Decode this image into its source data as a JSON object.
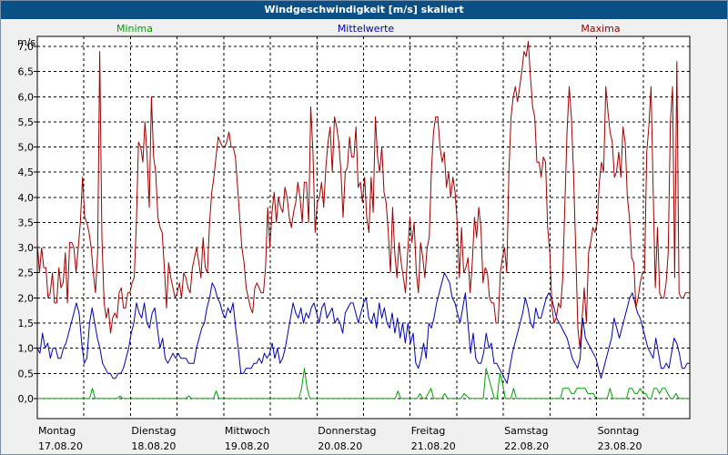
{
  "window": {
    "title": "Windgeschwindigkeit [m/s] skaliert"
  },
  "colors": {
    "background": "#f0f0f0",
    "title_bar": "#0a4f86",
    "minima": "#00a000",
    "mittelwerte": "#0000b0",
    "maxima": "#a00000",
    "grid": "#000000"
  },
  "chart_data": {
    "type": "line",
    "title": "Windgeschwindigkeit [m/s] skaliert",
    "ylabel": "m/s",
    "xlabel": "",
    "ylim": [
      -0.4,
      7.2
    ],
    "y_ticks": [
      0.0,
      0.5,
      1.0,
      1.5,
      2.0,
      2.5,
      3.0,
      3.5,
      4.0,
      4.5,
      5.0,
      5.5,
      6.0,
      6.5,
      7.0
    ],
    "y_tick_labels": [
      "0,0",
      "0,5",
      "1,0",
      "1,5",
      "2,0",
      "2,5",
      "3,0",
      "3,5",
      "4,0",
      "4,5",
      "5,0",
      "5,5",
      "6,0",
      "6,5",
      "7,0"
    ],
    "x_range_days": [
      0,
      7
    ],
    "x_ticks": [
      {
        "day": "Montag",
        "date": "17.08.20"
      },
      {
        "day": "Dienstag",
        "date": "18.08.20"
      },
      {
        "day": "Mittwoch",
        "date": "19.08.20"
      },
      {
        "day": "Donnerstag",
        "date": "20.08.20"
      },
      {
        "day": "Freitag",
        "date": "21.08.20"
      },
      {
        "day": "Samstag",
        "date": "22.08.20"
      },
      {
        "day": "Sonntag",
        "date": "23.08.20"
      }
    ],
    "grid": true,
    "series": [
      {
        "name": "Minima",
        "color": "#00a000",
        "legend_position": "left",
        "values": [
          0,
          0,
          0,
          0,
          0,
          0,
          0,
          0,
          0,
          0,
          0,
          0,
          0,
          0,
          0,
          0,
          0,
          0,
          0,
          0,
          0.2,
          0,
          0,
          0,
          0,
          0,
          0,
          0,
          0,
          0,
          0.05,
          0,
          0,
          0,
          0,
          0,
          0,
          0,
          0,
          0,
          0,
          0,
          0,
          0,
          0,
          0,
          0,
          0,
          0,
          0,
          0,
          0,
          0,
          0,
          0,
          0.05,
          0,
          0,
          0,
          0,
          0,
          0,
          0,
          0,
          0,
          0.15,
          0,
          0,
          0,
          0,
          0,
          0,
          0,
          0,
          0,
          0,
          0,
          0,
          0,
          0,
          0,
          0,
          0,
          0,
          0,
          0,
          0,
          0,
          0,
          0,
          0,
          0,
          0,
          0,
          0,
          0,
          0.2,
          0.6,
          0.2,
          0,
          0,
          0,
          0,
          0,
          0,
          0,
          0,
          0,
          0,
          0,
          0,
          0,
          0,
          0,
          0,
          0,
          0,
          0,
          0,
          0,
          0,
          0,
          0,
          0,
          0,
          0,
          0,
          0,
          0,
          0,
          0,
          0.15,
          0,
          0,
          0,
          0,
          0,
          0,
          0,
          0.1,
          0,
          0,
          0.1,
          0.2,
          0,
          0,
          0,
          0,
          0.1,
          0,
          0,
          0,
          0,
          0,
          0,
          0.1,
          0.05,
          0,
          0,
          0,
          0,
          0,
          0,
          0.6,
          0.4,
          0.2,
          0,
          0,
          0.5,
          0.3,
          0,
          0,
          0,
          0.2,
          0,
          0,
          0,
          0,
          0,
          0,
          0,
          0,
          0,
          0,
          0,
          0,
          0,
          0,
          0,
          0,
          0,
          0.2,
          0.2,
          0.2,
          0.1,
          0.1,
          0.2,
          0.2,
          0.2,
          0.2,
          0.1,
          0.1,
          0.1,
          0,
          0,
          0,
          0,
          0,
          0.2,
          0,
          0,
          0,
          0,
          0,
          0,
          0.2,
          0.2,
          0.1,
          0.1,
          0.2,
          0.1,
          0.1,
          0,
          0,
          0.2,
          0.2,
          0.1,
          0.2,
          0.2,
          0.1,
          0,
          0,
          0.1,
          0,
          0,
          0,
          0,
          0
        ]
      },
      {
        "name": "Mittelwerte",
        "color": "#0000b0",
        "legend_position": "center",
        "values": [
          1.0,
          0.9,
          1.3,
          1.0,
          1.1,
          0.8,
          1.0,
          1.0,
          0.8,
          0.8,
          1.0,
          1.1,
          1.3,
          1.5,
          1.7,
          1.9,
          1.7,
          1.1,
          0.7,
          0.8,
          1.5,
          1.8,
          1.5,
          1.2,
          1.0,
          0.7,
          0.6,
          0.5,
          0.5,
          0.4,
          0.4,
          0.5,
          0.5,
          0.6,
          0.8,
          1.0,
          1.3,
          1.5,
          1.9,
          1.7,
          1.6,
          1.9,
          1.5,
          1.4,
          1.7,
          1.8,
          1.4,
          1.0,
          1.2,
          0.8,
          0.7,
          0.8,
          0.9,
          0.8,
          0.9,
          0.8,
          0.8,
          0.8,
          0.7,
          0.7,
          0.7,
          1.0,
          1.2,
          1.4,
          1.5,
          1.8,
          2.0,
          2.3,
          2.2,
          2.0,
          1.9,
          1.7,
          1.6,
          1.8,
          1.7,
          1.9,
          1.4,
          1.0,
          0.5,
          0.5,
          0.6,
          0.6,
          0.6,
          0.7,
          0.7,
          0.8,
          0.7,
          0.9,
          0.8,
          0.9,
          1.1,
          0.8,
          1.0,
          0.7,
          0.8,
          1.0,
          1.3,
          1.6,
          1.9,
          1.7,
          1.6,
          1.8,
          1.5,
          1.7,
          1.6,
          1.8,
          1.9,
          1.7,
          1.5,
          1.8,
          1.9,
          1.6,
          1.7,
          1.8,
          1.5,
          1.6,
          1.5,
          1.3,
          1.7,
          1.8,
          1.9,
          1.9,
          1.7,
          1.5,
          1.7,
          1.9,
          2.0,
          1.6,
          1.5,
          1.7,
          1.4,
          1.9,
          1.6,
          1.8,
          1.5,
          1.4,
          1.7,
          1.3,
          1.6,
          1.2,
          1.5,
          1.1,
          1.5,
          1.1,
          1.3,
          0.7,
          0.6,
          0.8,
          1.1,
          0.8,
          1.5,
          1.4,
          1.6,
          1.9,
          2.1,
          2.3,
          2.5,
          2.4,
          2.3,
          2.0,
          1.9,
          1.7,
          1.5,
          1.8,
          2.1,
          1.5,
          0.9,
          1.3,
          0.8,
          0.7,
          0.7,
          0.9,
          1.3,
          1.0,
          1.1,
          0.7,
          0.7,
          0.6,
          0.5,
          0.4,
          0.3,
          0.6,
          0.9,
          1.1,
          1.3,
          1.5,
          1.7,
          2.0,
          1.8,
          1.5,
          1.4,
          1.8,
          1.6,
          1.6,
          1.8,
          2.0,
          2.1,
          2.0,
          1.8,
          1.6,
          1.5,
          1.4,
          1.3,
          1.2,
          1.0,
          0.8,
          0.7,
          0.6,
          0.8,
          1.6,
          1.2,
          1.1,
          1.0,
          0.9,
          0.8,
          0.6,
          0.4,
          0.6,
          0.8,
          1.0,
          1.2,
          1.6,
          1.4,
          1.2,
          1.4,
          1.6,
          1.8,
          2.0,
          2.1,
          1.9,
          1.7,
          1.6,
          1.4,
          1.2,
          1.0,
          0.9,
          0.8,
          1.2,
          0.9,
          0.6,
          0.6,
          0.7,
          0.6,
          0.9,
          1.2,
          1.1,
          0.9,
          0.6,
          0.6,
          0.7,
          0.7
        ]
      },
      {
        "name": "Maxima",
        "color": "#a00000",
        "legend_position": "right",
        "values": [
          3.1,
          2.5,
          3.0,
          2.6,
          2.6,
          2.0,
          2.1,
          2.5,
          1.9,
          1.9,
          2.6,
          2.2,
          2.3,
          2.9,
          1.9,
          3.1,
          3.1,
          3.0,
          2.5,
          3.0,
          3.5,
          4.4,
          3.6,
          3.5,
          3.3,
          3.0,
          2.5,
          2.1,
          2.9,
          6.9,
          3.2,
          1.9,
          1.6,
          1.8,
          1.3,
          1.6,
          1.7,
          1.6,
          2.1,
          2.2,
          1.8,
          1.8,
          2.1,
          2.1,
          2.3,
          2.4,
          3.5,
          5.1,
          5.0,
          4.7,
          5.5,
          4.8,
          3.8,
          6.0,
          4.8,
          4.5,
          3.6,
          3.4,
          3.3,
          2.6,
          1.8,
          2.7,
          2.4,
          2.2,
          2.0,
          2.1,
          2.3,
          2.0,
          2.5,
          2.4,
          2.2,
          2.1,
          2.6,
          2.8,
          3.0,
          2.7,
          2.4,
          3.2,
          2.6,
          2.5,
          3.5,
          4.1,
          4.4,
          4.8,
          5.2,
          5.1,
          5.0,
          5.0,
          5.1,
          5.3,
          5.0,
          5.0,
          4.8,
          4.2,
          3.6,
          3.0,
          2.7,
          2.2,
          2.0,
          1.8,
          1.7,
          2.2,
          2.3,
          2.2,
          2.1,
          2.1,
          2.6,
          3.8,
          3.0,
          3.7,
          4.1,
          3.5,
          4.0,
          3.8,
          3.7,
          4.2,
          4.0,
          3.6,
          3.4,
          3.7,
          3.9,
          4.3,
          4.0,
          3.5,
          4.3,
          4.3,
          3.5,
          5.8,
          4.9,
          3.3,
          3.9,
          4.0,
          4.3,
          3.8,
          4.6,
          5.1,
          5.4,
          4.5,
          5.6,
          5.4,
          5.1,
          4.5,
          3.6,
          4.5,
          4.6,
          5.2,
          4.8,
          4.8,
          5.4,
          4.2,
          4.3,
          3.9,
          4.4,
          3.6,
          3.3,
          4.4,
          3.7,
          5.6,
          4.8,
          4.5,
          5.0,
          4.1,
          3.9,
          3.3,
          2.5,
          3.8,
          2.9,
          2.4,
          3.1,
          2.7,
          2.4,
          2.1,
          2.9,
          3.6,
          3.1,
          3.5,
          2.5,
          2.1,
          3.1,
          2.8,
          2.4,
          3.0,
          3.2,
          4.5,
          5.3,
          5.6,
          5.6,
          5.0,
          4.7,
          4.9,
          4.2,
          4.5,
          4.0,
          4.4,
          4.1,
          3.5,
          2.4,
          3.4,
          2.5,
          2.6,
          2.8,
          2.1,
          2.7,
          3.6,
          3.2,
          3.8,
          3.4,
          2.3,
          2.6,
          2.5,
          2.0,
          1.9,
          1.9,
          1.5,
          1.5,
          2.5,
          2.8,
          3.0,
          2.5,
          4.5,
          5.6,
          6.0,
          6.2,
          5.9,
          6.2,
          6.5,
          6.9,
          6.8,
          7.1,
          6.4,
          5.8,
          5.6,
          4.7,
          4.7,
          4.4,
          4.8,
          4.7,
          3.4,
          2.9,
          1.8,
          1.5,
          1.6,
          1.9,
          1.8,
          2.4,
          3.9,
          5.3,
          6.2,
          5.6,
          4.5,
          3.0,
          1.4,
          1.0,
          1.6,
          2.2,
          1.5,
          2.9,
          3.1,
          3.4,
          3.3,
          3.5,
          4.3,
          4.7,
          4.5,
          6.2,
          5.7,
          5.3,
          5.1,
          4.4,
          4.5,
          4.9,
          4.4,
          5.4,
          5.1,
          4.0,
          3.6,
          2.8,
          2.7,
          1.8,
          2.0,
          2.3,
          2.5,
          2.5,
          4.9,
          5.4,
          6.2,
          4.1,
          2.2,
          3.4,
          2.1,
          2.0,
          2.0,
          2.3,
          2.9,
          5.5,
          6.2,
          2.4,
          6.7,
          2.1,
          2.0,
          2.0,
          2.1,
          2.1,
          2.1
        ]
      }
    ]
  }
}
